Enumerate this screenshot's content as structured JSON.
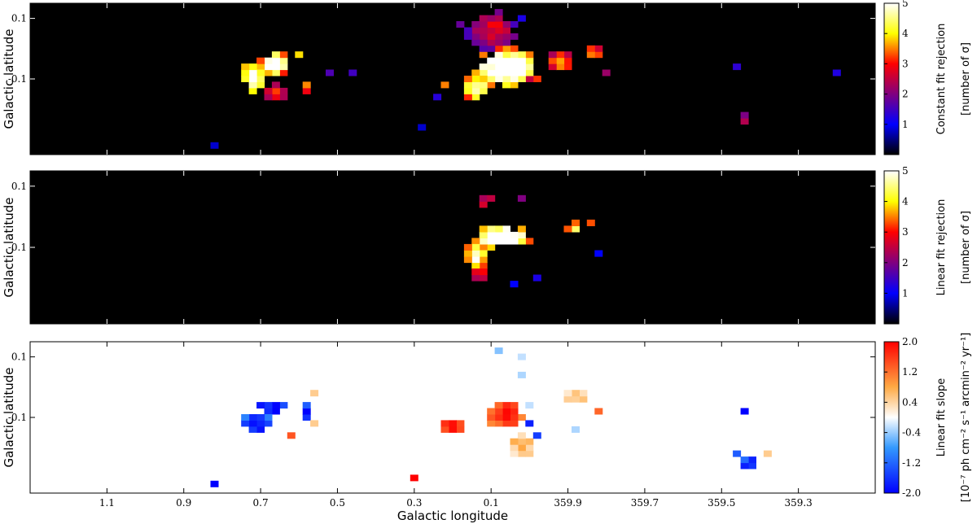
{
  "x_axis_label": "Galactic longitude",
  "x_tick_labels": [
    "1.1",
    "0.9",
    "0.7",
    "0.5",
    "0.3",
    "0.1",
    "359.9",
    "359.7",
    "359.5",
    "359.3"
  ],
  "colormaps": {
    "hot": [
      "#000000",
      "#0000ff",
      "#800080",
      "#ff0000",
      "#ffff00",
      "#ffffff"
    ],
    "diverging": [
      "#0000ff",
      "#3399ff",
      "#ffffff",
      "#ffaa44",
      "#ff0000"
    ]
  },
  "chart_data": [
    {
      "type": "heatmap",
      "ylabel": "Galactic latitude",
      "y_tick_labels": [
        "0.1",
        "-0.1"
      ],
      "colorbar_label": "Constant fit rejection",
      "colorbar_units": "[number of σ]",
      "colorbar_ticks": [
        "1",
        "2",
        "3",
        "4",
        "5"
      ],
      "vmin": 0,
      "vmax": 5,
      "colormap": "hot",
      "grid_cell_deg": 0.02,
      "blobs": [
        {
          "l": 0.665,
          "b": -0.045,
          "rl": 0.035,
          "rb": 0.04,
          "value": 5.5
        },
        {
          "l": 0.715,
          "b": -0.095,
          "rl": 0.03,
          "rb": 0.05,
          "value": 5.2
        },
        {
          "l": 0.66,
          "b": -0.14,
          "rl": 0.03,
          "rb": 0.03,
          "value": 3.0
        },
        {
          "l": 0.59,
          "b": -0.03,
          "rl": 0.012,
          "rb": 0.015,
          "value": 4.0
        },
        {
          "l": 0.58,
          "b": -0.13,
          "rl": 0.015,
          "rb": 0.025,
          "value": 3.5
        },
        {
          "l": 0.06,
          "b": -0.07,
          "rl": 0.09,
          "rb": 0.06,
          "value": 5.6
        },
        {
          "l": 0.14,
          "b": -0.12,
          "rl": 0.03,
          "rb": 0.04,
          "value": 5.0
        },
        {
          "l": 0.1,
          "b": 0.05,
          "rl": 0.06,
          "rb": 0.06,
          "value": 2.8
        },
        {
          "l": 0.08,
          "b": 0.16,
          "rl": 0.012,
          "rb": 0.015,
          "value": 3.0
        },
        {
          "l": 359.92,
          "b": -0.04,
          "rl": 0.03,
          "rb": 0.03,
          "value": 3.8
        },
        {
          "l": 359.84,
          "b": -0.02,
          "rl": 0.025,
          "rb": 0.02,
          "value": 4.0
        },
        {
          "l": 359.44,
          "b": -0.23,
          "rl": 0.015,
          "rb": 0.02,
          "value": 2.5
        },
        {
          "l": 359.45,
          "b": -0.07,
          "rl": 0.015,
          "rb": 0.015,
          "value": 1.2
        },
        {
          "l": 359.19,
          "b": -0.08,
          "rl": 0.012,
          "rb": 0.015,
          "value": 1.2
        }
      ],
      "scatter": [
        {
          "l": 0.21,
          "b": -0.12,
          "value": 3.5
        },
        {
          "l": 0.23,
          "b": -0.16,
          "value": 1.3
        },
        {
          "l": 0.29,
          "b": -0.26,
          "value": 0.8
        },
        {
          "l": 0.81,
          "b": -0.33,
          "value": 0.8
        },
        {
          "l": 0.46,
          "b": -0.09,
          "value": 1.5
        },
        {
          "l": 0.52,
          "b": -0.08,
          "value": 1.6
        },
        {
          "l": 359.99,
          "b": -0.1,
          "value": 2.5
        },
        {
          "l": 0.02,
          "b": 0.1,
          "value": 1.2
        },
        {
          "l": 359.8,
          "b": -0.07,
          "value": 2.2
        },
        {
          "l": 0.18,
          "b": 0.07,
          "value": 1.8
        }
      ]
    },
    {
      "type": "heatmap",
      "ylabel": "Galactic latitude",
      "y_tick_labels": [
        "0.1",
        "-0.1"
      ],
      "colorbar_label": "Linear fit rejection",
      "colorbar_units": "[number of σ]",
      "colorbar_ticks": [
        "1",
        "2",
        "3",
        "4",
        "5"
      ],
      "vmin": 0,
      "vmax": 5,
      "colormap": "hot",
      "grid_cell_deg": 0.02,
      "blobs": [
        {
          "l": 0.065,
          "b": -0.06,
          "rl": 0.07,
          "rb": 0.04,
          "value": 5.6
        },
        {
          "l": 0.14,
          "b": -0.12,
          "rl": 0.03,
          "rb": 0.04,
          "value": 4.8
        },
        {
          "l": 0.12,
          "b": -0.19,
          "rl": 0.02,
          "rb": 0.03,
          "value": 3.2
        },
        {
          "l": 0.11,
          "b": 0.04,
          "rl": 0.015,
          "rb": 0.02,
          "value": 2.5
        },
        {
          "l": 359.88,
          "b": -0.03,
          "rl": 0.02,
          "rb": 0.02,
          "value": 4.5
        },
        {
          "l": 359.83,
          "b": -0.03,
          "rl": 0.015,
          "rb": 0.015,
          "value": 3.5
        }
      ],
      "scatter": [
        {
          "l": 0.1,
          "b": 0.06,
          "value": 2.5
        },
        {
          "l": 0.02,
          "b": 0.06,
          "value": 2.0
        },
        {
          "l": 359.82,
          "b": -0.12,
          "value": 1.0
        },
        {
          "l": 359.98,
          "b": -0.2,
          "value": 1.2
        },
        {
          "l": 0.04,
          "b": -0.22,
          "value": 1.0
        }
      ]
    },
    {
      "type": "heatmap",
      "ylabel": "Galactic latitude",
      "y_tick_labels": [
        "0.1",
        "-0.1"
      ],
      "colorbar_label": "Linear fit slope",
      "colorbar_units": "[10⁻⁷ ph cm⁻² s⁻¹ arcmin⁻² yr⁻¹]",
      "colorbar_ticks": [
        "-2.0",
        "-1.2",
        "-0.4",
        "0.4",
        "1.2",
        "2.0"
      ],
      "vmin": -2,
      "vmax": 2,
      "colormap": "diverging",
      "grid_cell_deg": 0.02,
      "blobs": [
        {
          "l": 0.67,
          "b": -0.06,
          "rl": 0.04,
          "rb": 0.025,
          "value": -2.0
        },
        {
          "l": 0.71,
          "b": -0.12,
          "rl": 0.04,
          "rb": 0.03,
          "value": -2.0
        },
        {
          "l": 0.58,
          "b": -0.08,
          "rl": 0.012,
          "rb": 0.03,
          "value": -2.0
        },
        {
          "l": 0.07,
          "b": -0.08,
          "rl": 0.05,
          "rb": 0.04,
          "value": 2.0
        },
        {
          "l": 0.2,
          "b": -0.13,
          "rl": 0.03,
          "rb": 0.025,
          "value": 1.8
        },
        {
          "l": 0.01,
          "b": -0.19,
          "rl": 0.03,
          "rb": 0.04,
          "value": 0.8
        },
        {
          "l": 359.87,
          "b": -0.04,
          "rl": 0.04,
          "rb": 0.02,
          "value": 0.5
        },
        {
          "l": 359.43,
          "b": -0.09,
          "rl": 0.015,
          "rb": 0.015,
          "value": -1.9
        },
        {
          "l": 359.43,
          "b": -0.25,
          "rl": 0.02,
          "rb": 0.02,
          "value": -1.9
        }
      ],
      "scatter": [
        {
          "l": 0.81,
          "b": -0.33,
          "value": -2.0
        },
        {
          "l": 0.62,
          "b": -0.17,
          "value": 1.5
        },
        {
          "l": 0.55,
          "b": -0.13,
          "value": 0.6
        },
        {
          "l": 0.56,
          "b": -0.03,
          "value": 0.6
        },
        {
          "l": 0.3,
          "b": -0.3,
          "value": 2.0
        },
        {
          "l": 0.08,
          "b": 0.12,
          "value": -0.6
        },
        {
          "l": 0.02,
          "b": 0.09,
          "value": -0.3
        },
        {
          "l": 0.02,
          "b": 0.04,
          "value": -0.4
        },
        {
          "l": 359.99,
          "b": -0.12,
          "value": -1.8
        },
        {
          "l": 359.98,
          "b": -0.16,
          "value": -1.6
        },
        {
          "l": 359.99,
          "b": -0.06,
          "value": -0.3
        },
        {
          "l": 359.87,
          "b": -0.14,
          "value": -0.4
        },
        {
          "l": 359.82,
          "b": -0.08,
          "value": 1.4
        },
        {
          "l": 359.46,
          "b": -0.22,
          "value": -1.4
        },
        {
          "l": 359.38,
          "b": -0.23,
          "value": 0.6
        }
      ]
    }
  ]
}
